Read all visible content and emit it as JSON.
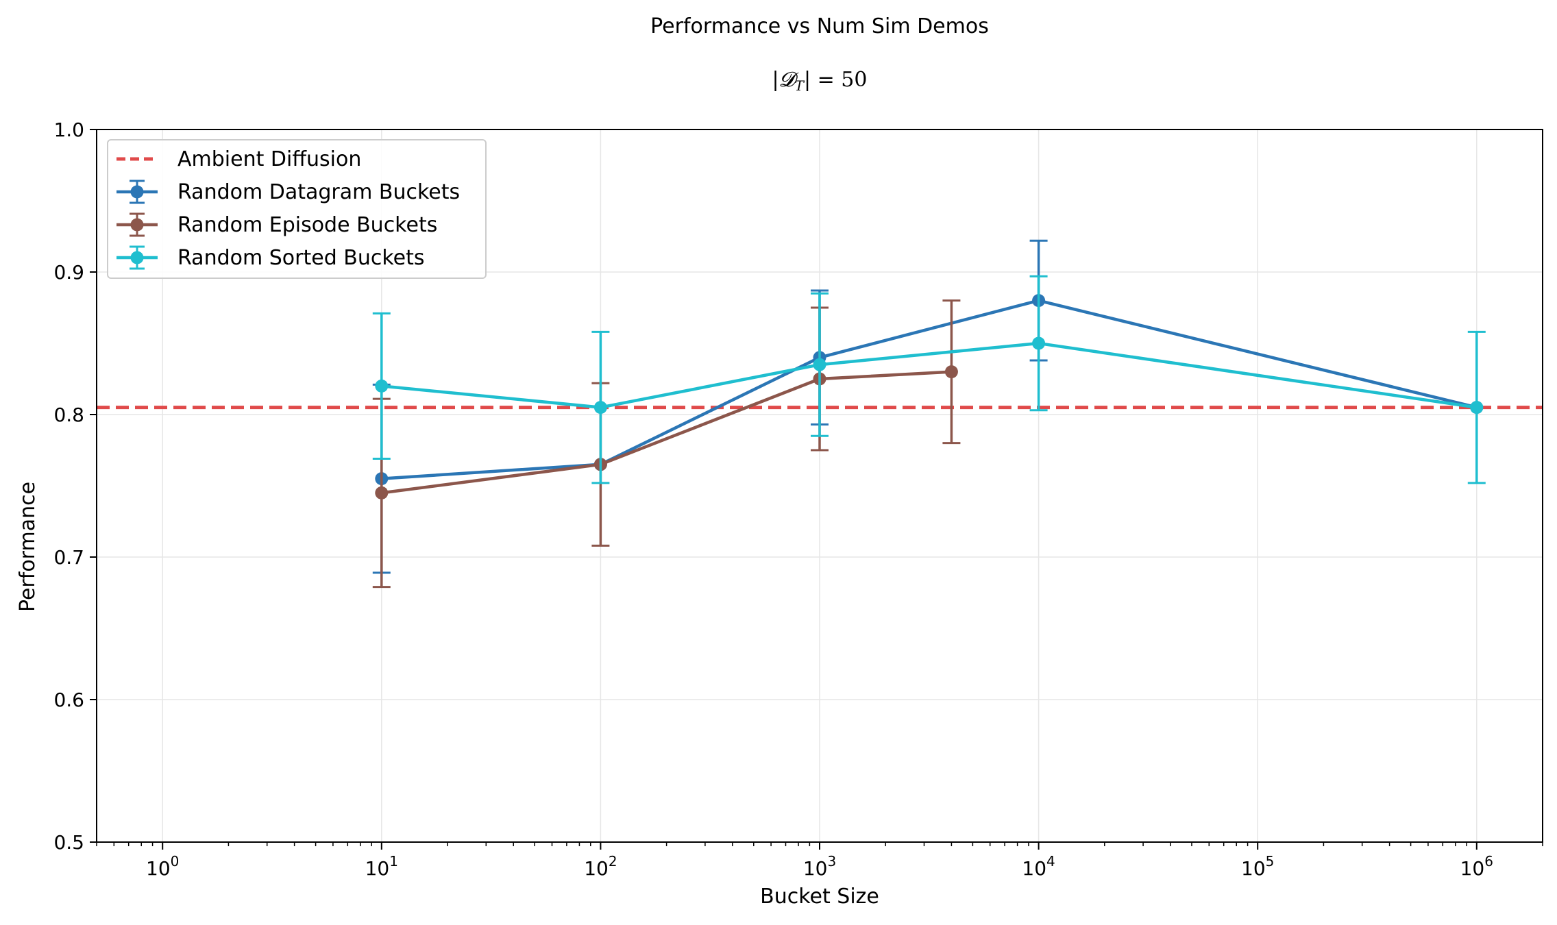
{
  "chart_data": {
    "type": "line",
    "title": "Performance vs Num Sim Demos",
    "subtitle": "|D_T| = 50",
    "subtitle_parts": {
      "lhs": "|𝓓",
      "sub": "T",
      "rhs": "| = 50"
    },
    "xlabel": "Bucket Size",
    "ylabel": "Performance",
    "xscale": "log",
    "xlim": [
      0.5,
      2000000
    ],
    "ylim": [
      0.5,
      1.0
    ],
    "grid": true,
    "legend_position": "top-left",
    "yticks": [
      "0.5",
      "0.6",
      "0.7",
      "0.8",
      "0.9",
      "1.0"
    ],
    "xticks": [
      {
        "value": 1,
        "base": "10",
        "exp": "0"
      },
      {
        "value": 10,
        "base": "10",
        "exp": "1"
      },
      {
        "value": 100,
        "base": "10",
        "exp": "2"
      },
      {
        "value": 1000,
        "base": "10",
        "exp": "3"
      },
      {
        "value": 10000,
        "base": "10",
        "exp": "4"
      },
      {
        "value": 100000,
        "base": "10",
        "exp": "5"
      },
      {
        "value": 1000000,
        "base": "10",
        "exp": "6"
      }
    ],
    "reference_line": {
      "name": "Ambient Diffusion",
      "y": 0.805,
      "color": "#e04a4a",
      "style": "dashed"
    },
    "series": [
      {
        "name": "Random Datagram Buckets",
        "color": "#2b76b5",
        "x": [
          10,
          100,
          1000,
          10000,
          1000000
        ],
        "y": [
          0.755,
          0.765,
          0.84,
          0.88,
          0.805
        ],
        "err": [
          0.066,
          0.0,
          0.047,
          0.042,
          0.0
        ]
      },
      {
        "name": "Random Episode Buckets",
        "color": "#8c564b",
        "x": [
          10,
          100,
          1000,
          4000
        ],
        "y": [
          0.745,
          0.765,
          0.825,
          0.83
        ],
        "err": [
          0.066,
          0.057,
          0.05,
          0.05
        ]
      },
      {
        "name": "Random Sorted Buckets",
        "color": "#1fbecf",
        "x": [
          10,
          100,
          1000,
          10000,
          1000000
        ],
        "y": [
          0.82,
          0.805,
          0.835,
          0.85,
          0.805
        ],
        "err": [
          0.051,
          0.053,
          0.05,
          0.047,
          0.053
        ]
      }
    ]
  }
}
